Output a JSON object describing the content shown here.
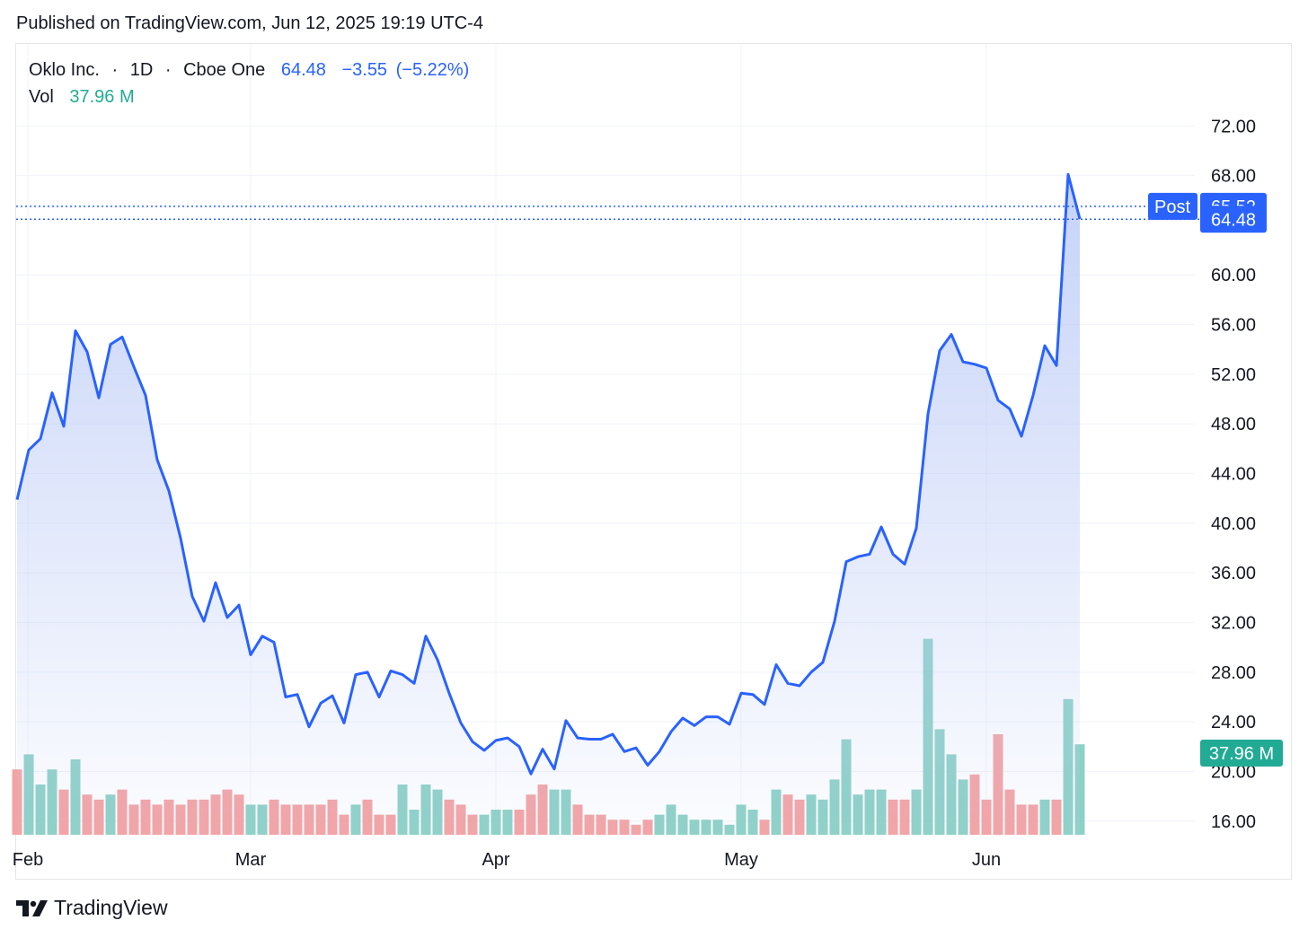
{
  "header": {
    "published": "Published on TradingView.com, Jun 12, 2025 19:19 UTC-4"
  },
  "legend": {
    "symbol": "Oklo Inc.",
    "interval": "1D",
    "exchange": "Cboe One",
    "separator": "·",
    "last": "64.48",
    "change": "−3.55",
    "change_pct": "(−5.22%)",
    "vol_label": "Vol",
    "vol_value": "37.96 M"
  },
  "price_tags": {
    "post_label": "Post",
    "post_value": "65.52",
    "last_value": "64.48",
    "vol_value": "37.96 M"
  },
  "footer": {
    "brand": "TradingView"
  },
  "colors": {
    "line": "#2962ff",
    "area_top": "#c7d3f8",
    "vol_up": "#8dd1c6",
    "vol_down": "#f4a3a3",
    "vol_tag": "#22ab94",
    "grid": "#f0f3fa"
  },
  "chart_data": {
    "type": "area",
    "y_ticks": [
      "16.00",
      "20.00",
      "24.00",
      "28.00",
      "32.00",
      "36.00",
      "40.00",
      "44.00",
      "48.00",
      "52.00",
      "56.00",
      "60.00",
      "68.00",
      "72.00"
    ],
    "ylim": [
      14.9,
      78.6
    ],
    "x_labels": [
      {
        "label": "Feb",
        "index": 0
      },
      {
        "label": "Mar",
        "index": 20
      },
      {
        "label": "Apr",
        "index": 41
      },
      {
        "label": "May",
        "index": 62
      },
      {
        "label": "Jun",
        "index": 83
      }
    ],
    "close": [
      41.9,
      45.9,
      46.8,
      50.5,
      47.8,
      55.5,
      53.8,
      50.1,
      54.4,
      55.0,
      52.6,
      50.3,
      45.1,
      42.6,
      38.8,
      34.1,
      32.1,
      35.2,
      32.4,
      33.4,
      29.4,
      30.9,
      30.4,
      26.0,
      26.2,
      23.6,
      25.5,
      26.1,
      23.9,
      27.8,
      28.0,
      26.0,
      28.1,
      27.8,
      27.1,
      30.9,
      29.0,
      26.3,
      23.9,
      22.4,
      21.7,
      22.5,
      22.7,
      22.0,
      19.8,
      21.8,
      20.2,
      24.1,
      22.7,
      22.6,
      22.6,
      23.0,
      21.6,
      21.9,
      20.5,
      21.6,
      23.2,
      24.3,
      23.7,
      24.4,
      24.4,
      23.8,
      26.3,
      26.2,
      25.4,
      28.6,
      27.1,
      26.9,
      28.0,
      28.8,
      32.1,
      36.9,
      37.3,
      37.5,
      39.7,
      37.5,
      36.7,
      39.6,
      48.8,
      53.9,
      55.2,
      53.0,
      52.8,
      52.5,
      49.9,
      49.2,
      47.0,
      50.3,
      54.3,
      52.7,
      68.1,
      64.5
    ],
    "volume_pct": [
      13,
      16,
      10,
      13,
      9,
      15,
      8,
      7,
      8,
      9,
      6,
      7,
      6,
      7,
      6,
      7,
      7,
      8,
      9,
      8,
      6,
      6,
      7,
      6,
      6,
      6,
      6,
      7,
      4,
      6,
      7,
      4,
      4,
      10,
      5,
      10,
      9,
      7,
      6,
      4,
      4,
      5,
      5,
      5,
      8,
      10,
      9,
      9,
      6,
      4,
      4,
      3,
      3,
      2,
      3,
      4,
      6,
      4,
      3,
      3,
      3,
      2,
      6,
      5,
      3,
      9,
      8,
      7,
      8,
      7,
      11,
      19,
      8,
      9,
      9,
      7,
      7,
      9,
      39,
      21,
      16,
      11,
      12,
      7,
      20,
      9,
      6,
      6,
      7,
      7,
      27,
      18
    ],
    "volume_up": [
      false,
      true,
      true,
      true,
      false,
      true,
      false,
      false,
      true,
      false,
      false,
      false,
      false,
      false,
      false,
      false,
      false,
      false,
      false,
      false,
      true,
      true,
      false,
      false,
      false,
      false,
      false,
      false,
      false,
      true,
      false,
      false,
      false,
      true,
      true,
      true,
      true,
      false,
      false,
      false,
      true,
      true,
      true,
      false,
      false,
      false,
      true,
      true,
      false,
      false,
      false,
      false,
      false,
      false,
      false,
      true,
      true,
      true,
      true,
      true,
      true,
      true,
      true,
      true,
      false,
      true,
      false,
      false,
      true,
      true,
      true,
      true,
      true,
      true,
      true,
      false,
      false,
      true,
      true,
      true,
      true,
      true,
      false,
      false,
      false,
      false,
      false,
      false,
      true,
      false,
      true,
      true
    ],
    "post_price": 65.52,
    "last_price": 64.48,
    "series": [
      {
        "name": "Vol"
      }
    ]
  }
}
